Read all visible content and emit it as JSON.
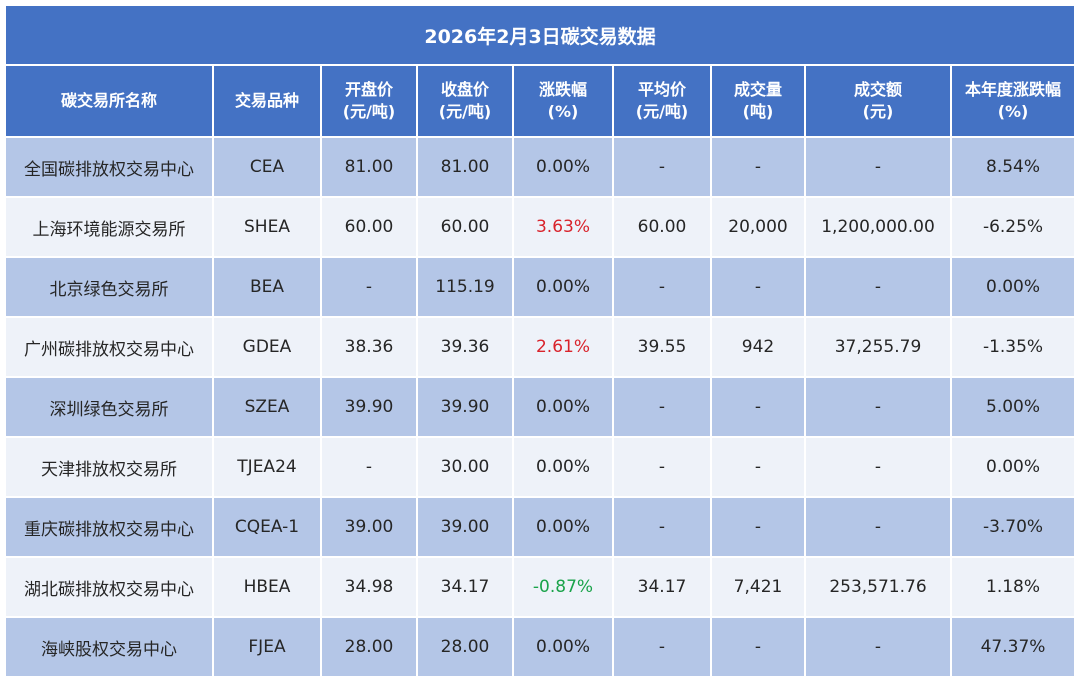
{
  "title": "2026年2月3日碳交易数据",
  "columns": [
    {
      "l1": "碳交易所名称",
      "l2": ""
    },
    {
      "l1": "交易品种",
      "l2": ""
    },
    {
      "l1": "开盘价",
      "l2": "(元/吨)"
    },
    {
      "l1": "收盘价",
      "l2": "(元/吨)"
    },
    {
      "l1": "涨跌幅",
      "l2": "(%)"
    },
    {
      "l1": "平均价",
      "l2": "(元/吨)"
    },
    {
      "l1": "成交量",
      "l2": "(吨)"
    },
    {
      "l1": "成交额",
      "l2": "(元)"
    },
    {
      "l1": "本年度涨跌幅",
      "l2": "(%)"
    }
  ],
  "rows": [
    {
      "name": "全国碳排放权交易中心",
      "code": "CEA",
      "open": "81.00",
      "close": "81.00",
      "change": "0.00%",
      "trend": "flat",
      "avg": "-",
      "volume": "-",
      "amount": "-",
      "ytd": "8.54%"
    },
    {
      "name": "上海环境能源交易所",
      "code": "SHEA",
      "open": "60.00",
      "close": "60.00",
      "change": "3.63%",
      "trend": "up",
      "avg": "60.00",
      "volume": "20,000",
      "amount": "1,200,000.00",
      "ytd": "-6.25%"
    },
    {
      "name": "北京绿色交易所",
      "code": "BEA",
      "open": "-",
      "close": "115.19",
      "change": "0.00%",
      "trend": "flat",
      "avg": "-",
      "volume": "-",
      "amount": "-",
      "ytd": "0.00%"
    },
    {
      "name": "广州碳排放权交易中心",
      "code": "GDEA",
      "open": "38.36",
      "close": "39.36",
      "change": "2.61%",
      "trend": "up",
      "avg": "39.55",
      "volume": "942",
      "amount": "37,255.79",
      "ytd": "-1.35%"
    },
    {
      "name": "深圳绿色交易所",
      "code": "SZEA",
      "open": "39.90",
      "close": "39.90",
      "change": "0.00%",
      "trend": "flat",
      "avg": "-",
      "volume": "-",
      "amount": "-",
      "ytd": "5.00%"
    },
    {
      "name": "天津排放权交易所",
      "code": "TJEA24",
      "open": "-",
      "close": "30.00",
      "change": "0.00%",
      "trend": "flat",
      "avg": "-",
      "volume": "-",
      "amount": "-",
      "ytd": "0.00%"
    },
    {
      "name": "重庆碳排放权交易中心",
      "code": "CQEA-1",
      "open": "39.00",
      "close": "39.00",
      "change": "0.00%",
      "trend": "flat",
      "avg": "-",
      "volume": "-",
      "amount": "-",
      "ytd": "-3.70%"
    },
    {
      "name": "湖北碳排放权交易中心",
      "code": "HBEA",
      "open": "34.98",
      "close": "34.17",
      "change": "-0.87%",
      "trend": "down",
      "avg": "34.17",
      "volume": "7,421",
      "amount": "253,571.76",
      "ytd": "1.18%"
    },
    {
      "name": "海峡股权交易中心",
      "code": "FJEA",
      "open": "28.00",
      "close": "28.00",
      "change": "0.00%",
      "trend": "flat",
      "avg": "-",
      "volume": "-",
      "amount": "-",
      "ytd": "47.37%"
    }
  ],
  "colors": {
    "header": "#4472c4",
    "row_dark": "#b4c6e7",
    "row_light": "#eef2f9",
    "up": "#d9232b",
    "down": "#1aa34a"
  }
}
